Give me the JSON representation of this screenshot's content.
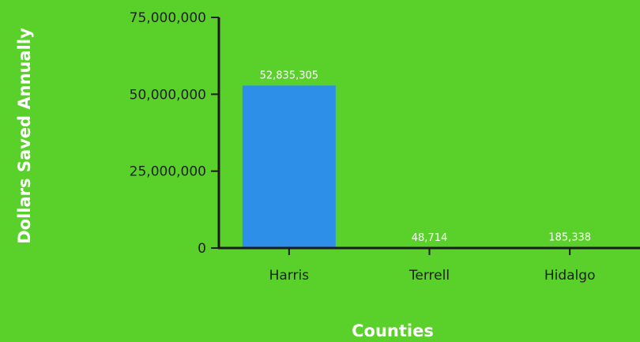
{
  "chart_data": {
    "type": "bar",
    "xlabel": "Counties",
    "ylabel": "Dollars Saved Annually",
    "categories": [
      "Harris",
      "Terrell",
      "Hidalgo"
    ],
    "values": [
      52835305,
      48714,
      185338
    ],
    "data_labels": [
      "52,835,305",
      "48,714",
      "185,338"
    ],
    "ylim": [
      0,
      75000000
    ],
    "yticks": [
      0,
      25000000,
      50000000,
      75000000
    ],
    "ytick_labels": [
      "0",
      "25,000,000",
      "50,000,000",
      "75,000,000"
    ],
    "grid": false,
    "legend": "none",
    "colors": {
      "background": "#5ad12a",
      "bar": "#2d8fe8",
      "axis": "#1a1a1a",
      "text": "#1f1f1f",
      "data_label": "#ffffff",
      "axis_title": "#ffffff"
    }
  }
}
